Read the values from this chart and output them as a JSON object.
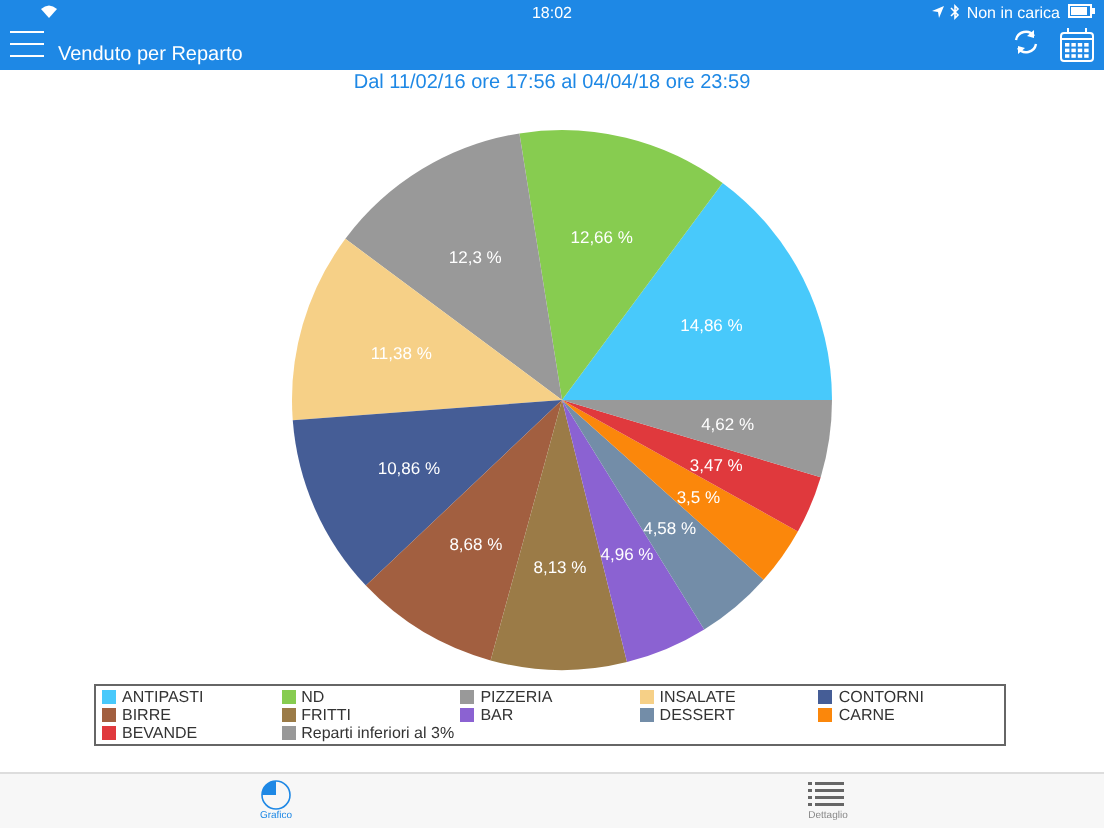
{
  "chart_data": {
    "type": "pie",
    "title": "Dal 11/02/16 ore 17:56 al 04/04/18 ore 23:59",
    "subtitle": "Venduto per Reparto",
    "categories": [
      "ANTIPASTI",
      "ND",
      "PIZZERIA",
      "INSALATE",
      "CONTORNI",
      "BIRRE",
      "FRITTI",
      "BAR",
      "DESSERT",
      "CARNE",
      "BEVANDE",
      "Reparti inferiori al 3%"
    ],
    "values": [
      14.86,
      12.66,
      12.3,
      11.38,
      10.86,
      8.68,
      8.13,
      4.96,
      4.58,
      3.5,
      3.47,
      4.62
    ],
    "value_labels": [
      "14,86 %",
      "12,66 %",
      "12,3 %",
      "11,38 %",
      "10,86 %",
      "8,68 %",
      "8,13 %",
      "4,96 %",
      "4,58 %",
      "3,5 %",
      "3,47 %",
      "4,62 %"
    ],
    "colors": [
      "#48c9fb",
      "#87cc50",
      "#999999",
      "#f6d087",
      "#455d96",
      "#a25f40",
      "#9b7b47",
      "#8b62d2",
      "#738da8",
      "#fb870b",
      "#e0393d",
      "#999999"
    ],
    "legend": "bottom",
    "annotations": [
      "18:02",
      "Non in carica",
      "Grafico",
      "Dettaglio"
    ]
  }
}
